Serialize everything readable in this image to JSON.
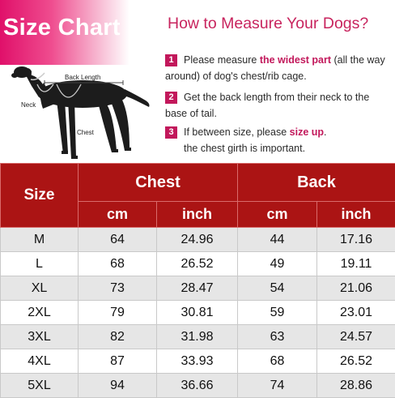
{
  "banner": {
    "title": "Size Chart"
  },
  "guide": {
    "title": "How to Measure Your Dogs?",
    "steps": [
      {
        "num": "1",
        "pre": "Please measure ",
        "em": "the widest part",
        "post": " (all the way around) of dog's chest/rib cage.",
        "line2": ""
      },
      {
        "num": "2",
        "pre": "Get the back length from their neck to the base of tail.",
        "em": "",
        "post": "",
        "line2": ""
      },
      {
        "num": "3",
        "pre": "If between size, please ",
        "em": "size up",
        "post": ".",
        "line2": "the chest girth is  important."
      }
    ]
  },
  "diagram": {
    "back_length": "Back Length",
    "neck": "Neck",
    "chest": "Chest"
  },
  "colors": {
    "brand": "#c2185b",
    "header_bg": "#ab1414"
  },
  "table": {
    "size_header": "Size",
    "groups": [
      "Chest",
      "Back"
    ],
    "units": [
      "cm",
      "inch",
      "cm",
      "inch"
    ],
    "rows": [
      [
        "M",
        "64",
        "24.96",
        "44",
        "17.16"
      ],
      [
        "L",
        "68",
        "26.52",
        "49",
        "19.11"
      ],
      [
        "XL",
        "73",
        "28.47",
        "54",
        "21.06"
      ],
      [
        "2XL",
        "79",
        "30.81",
        "59",
        "23.01"
      ],
      [
        "3XL",
        "82",
        "31.98",
        "63",
        "24.57"
      ],
      [
        "4XL",
        "87",
        "33.93",
        "68",
        "26.52"
      ],
      [
        "5XL",
        "94",
        "36.66",
        "74",
        "28.86"
      ]
    ]
  }
}
